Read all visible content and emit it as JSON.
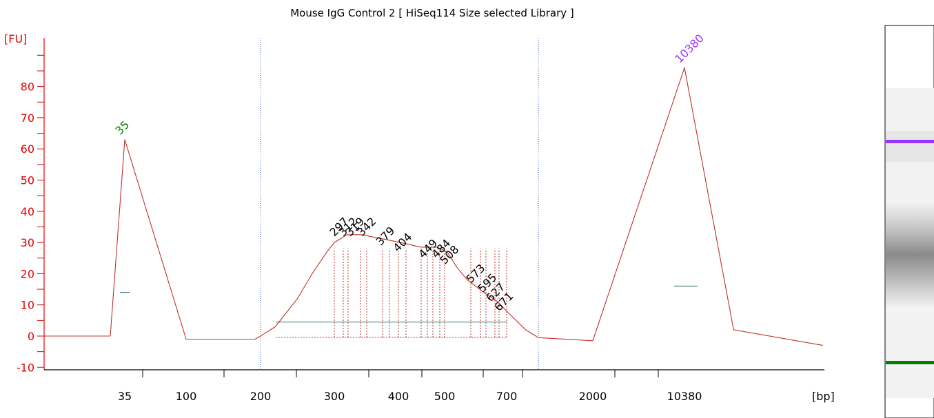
{
  "chart_data": {
    "type": "line",
    "title": "Mouse IgG Control 2  [ HiSeq114 Size selected Library ]",
    "y_unit": "[FU]",
    "x_unit": "[bp]",
    "ylim": [
      -12,
      95
    ],
    "y_ticks": [
      80,
      70,
      60,
      50,
      40,
      30,
      20,
      10,
      0,
      -10
    ],
    "x_tick_labels": [
      "35",
      "100",
      "200",
      "300",
      "400",
      "500",
      "700",
      "2000",
      "10380"
    ],
    "series": [
      {
        "x": [
          "30",
          "35",
          "100",
          "190",
          "200",
          "220",
          "250",
          "270",
          "290",
          "300",
          "320",
          "342",
          "379",
          "404",
          "449",
          "484",
          "508",
          "540",
          "573",
          "627",
          "671",
          "700",
          "760",
          "800",
          "2000",
          "10380",
          "10600",
          "11000"
        ],
        "values": [
          0,
          63,
          -1,
          -1,
          0,
          3,
          12,
          20,
          27,
          30,
          32.5,
          32.5,
          31,
          30,
          28.5,
          28.5,
          27,
          22,
          18,
          14,
          11,
          8,
          2,
          -0.5,
          -1.5,
          86,
          2,
          -3
        ]
      }
    ],
    "peak_labels": [
      "297",
      "312",
      "319",
      "342",
      "379",
      "404",
      "449",
      "484",
      "508",
      "573",
      "595",
      "627",
      "671"
    ],
    "markers": [
      {
        "label": "35",
        "value": 63,
        "color": "#008000"
      },
      {
        "label": "10380",
        "value": 86,
        "color": "#9933ff"
      }
    ],
    "gel_bands": [
      {
        "name": "upper-marker",
        "color": "#9933ff"
      },
      {
        "name": "lower-marker",
        "color": "#008000"
      }
    ],
    "legend": "none",
    "grid": false
  }
}
